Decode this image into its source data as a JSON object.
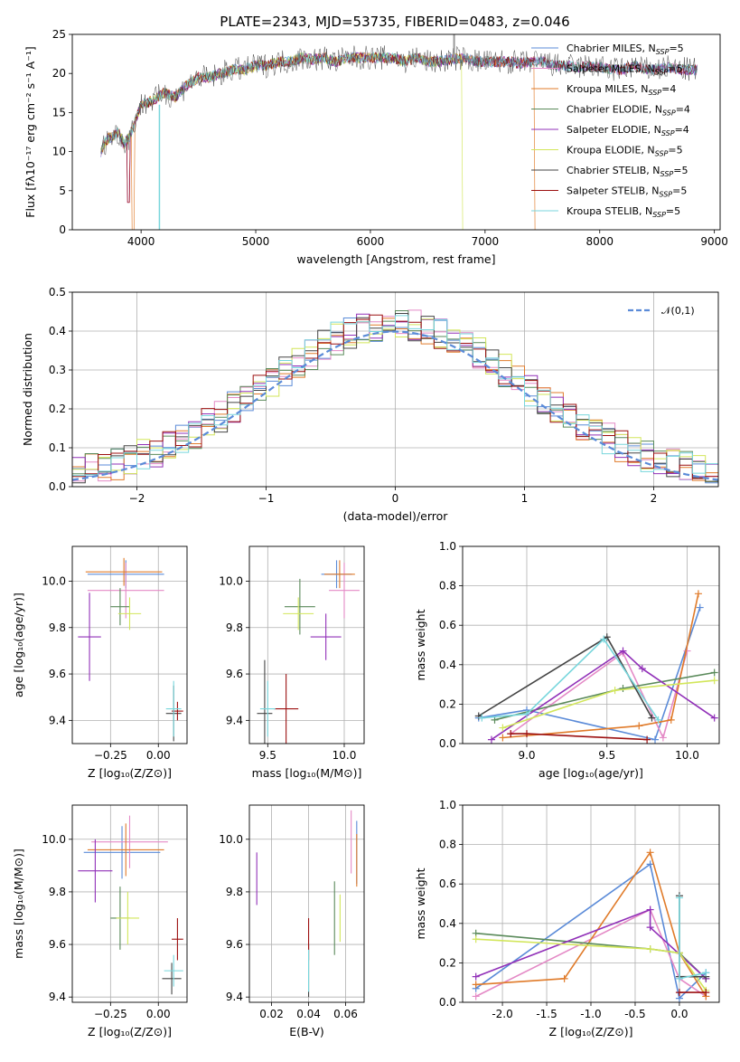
{
  "title": "PLATE=2343, MJD=53735, FIBERID=0483, z=0.046",
  "colors": {
    "Chabrier MILES": "#5b8bd8",
    "Salpeter MILES": "#e48ac6",
    "Kroupa MILES": "#e07b2a",
    "Chabrier ELODIE": "#5a8a5a",
    "Salpeter ELODIE": "#9130b8",
    "Kroupa ELODIE": "#d2e65a",
    "Chabrier STELIB": "#444444",
    "Salpeter STELIB": "#9c1010",
    "Kroupa STELIB": "#78d6dc"
  },
  "legend_entries": [
    {
      "name": "Chabrier MILES",
      "suffix": "5"
    },
    {
      "name": "Salpeter MILES",
      "suffix": "5"
    },
    {
      "name": "Kroupa MILES",
      "suffix": "4"
    },
    {
      "name": "Chabrier ELODIE",
      "suffix": "4"
    },
    {
      "name": "Salpeter ELODIE",
      "suffix": "4"
    },
    {
      "name": "Kroupa ELODIE",
      "suffix": "5"
    },
    {
      "name": "Chabrier STELIB",
      "suffix": "5"
    },
    {
      "name": "Salpeter STELIB",
      "suffix": "5"
    },
    {
      "name": "Kroupa STELIB",
      "suffix": "5"
    }
  ],
  "chart_data": [
    {
      "id": "spectrum",
      "type": "line",
      "xlabel": "wavelength [Angstrom, rest frame]",
      "ylabel": "Flux [fλ10⁻¹⁷ erg cm⁻² s⁻¹ A⁻¹]",
      "xlim": [
        3400,
        9050
      ],
      "ylim": [
        0,
        25
      ],
      "xticks": [
        4000,
        5000,
        6000,
        7000,
        8000,
        9000
      ],
      "yticks": [
        0,
        5,
        10,
        15,
        20,
        25
      ],
      "x": [
        3650,
        3700,
        3750,
        3800,
        3850,
        3900,
        3950,
        4000,
        4100,
        4200,
        4300,
        4400,
        4500,
        4600,
        4700,
        4800,
        4900,
        5000,
        5100,
        5200,
        5300,
        5400,
        5500,
        5600,
        5700,
        5800,
        5900,
        6000,
        6100,
        6200,
        6300,
        6400,
        6500,
        6600,
        6700,
        6800,
        6900,
        7000,
        7100,
        7200,
        7300,
        7400,
        7500,
        7600,
        7700,
        7800,
        7900,
        8000,
        8100,
        8200,
        8300,
        8400,
        8500,
        8600,
        8700,
        8800
      ],
      "flux": [
        10,
        11.5,
        12,
        12.5,
        11,
        12,
        14,
        16,
        16.5,
        17.5,
        17,
        18.5,
        19.5,
        19.5,
        20,
        20.5,
        20.5,
        21,
        21,
        21.5,
        21.5,
        22,
        21.8,
        22,
        21.5,
        22,
        22,
        22,
        22,
        22,
        21.5,
        22,
        21.5,
        21.5,
        21.8,
        22,
        21.6,
        21.5,
        21.5,
        21.5,
        21.3,
        21.5,
        21.5,
        21,
        21,
        20.8,
        21,
        20.8,
        20.5,
        20.5,
        21,
        20.5,
        20.5,
        20.8,
        20.5,
        20.5
      ],
      "legend": "top-right"
    },
    {
      "id": "residual_hist",
      "type": "bar",
      "xlabel": "(data-model)/error",
      "ylabel": "Normed distribution",
      "xlim": [
        -2.5,
        2.5
      ],
      "ylim": [
        0,
        0.5
      ],
      "xticks": [
        -2,
        -1,
        0,
        1,
        2
      ],
      "yticks": [
        0.0,
        0.1,
        0.2,
        0.3,
        0.4,
        0.5
      ],
      "bin_width": 0.1,
      "reference_series": "𝒩(0,1)",
      "legend": "top-right",
      "grid": true
    },
    {
      "id": "age_vs_Z",
      "type": "scatter",
      "xlabel": "Z [log₁₀(Z/Z⊙)]",
      "ylabel": "age  [log₁₀(age/yr)]",
      "xlim": [
        -0.45,
        0.15
      ],
      "ylim": [
        9.3,
        10.15
      ],
      "xticks": [
        -0.25,
        0.0
      ],
      "yticks": [
        9.4,
        9.6,
        9.8,
        10.0
      ],
      "points": [
        {
          "series": "Chabrier MILES",
          "x": -0.17,
          "y": 10.03,
          "xerr": 0.2,
          "yerr": 0.06
        },
        {
          "series": "Salpeter MILES",
          "x": -0.17,
          "y": 9.96,
          "xerr": 0.2,
          "yerr": 0.12
        },
        {
          "series": "Kroupa MILES",
          "x": -0.18,
          "y": 10.04,
          "xerr": 0.2,
          "yerr": 0.06
        },
        {
          "series": "Chabrier ELODIE",
          "x": -0.2,
          "y": 9.89,
          "xerr": 0.05,
          "yerr": 0.08
        },
        {
          "series": "Salpeter ELODIE",
          "x": -0.36,
          "y": 9.76,
          "xerr": 0.06,
          "yerr": 0.19
        },
        {
          "series": "Kroupa ELODIE",
          "x": -0.15,
          "y": 9.86,
          "xerr": 0.06,
          "yerr": 0.07
        },
        {
          "series": "Chabrier STELIB",
          "x": 0.08,
          "y": 9.43,
          "xerr": 0.04,
          "yerr": 0.12
        },
        {
          "series": "Salpeter STELIB",
          "x": 0.1,
          "y": 9.44,
          "xerr": 0.03,
          "yerr": 0.04
        },
        {
          "series": "Kroupa STELIB",
          "x": 0.08,
          "y": 9.45,
          "xerr": 0.04,
          "yerr": 0.12
        }
      ]
    },
    {
      "id": "age_vs_mass",
      "type": "scatter",
      "xlabel": "mass [log₁₀(M/M⊙)]",
      "ylabel": "",
      "xlim": [
        9.38,
        10.13
      ],
      "ylim": [
        9.3,
        10.15
      ],
      "xticks": [
        9.5,
        10.0
      ],
      "yticks": [
        9.4,
        9.6,
        9.8,
        10.0
      ],
      "points": [
        {
          "series": "Chabrier MILES",
          "x": 9.95,
          "y": 10.03,
          "xerr": 0.1,
          "yerr": 0.06
        },
        {
          "series": "Salpeter MILES",
          "x": 10.0,
          "y": 9.96,
          "xerr": 0.1,
          "yerr": 0.12
        },
        {
          "series": "Kroupa MILES",
          "x": 9.97,
          "y": 10.03,
          "xerr": 0.1,
          "yerr": 0.06
        },
        {
          "series": "Chabrier ELODIE",
          "x": 9.71,
          "y": 9.89,
          "xerr": 0.1,
          "yerr": 0.12
        },
        {
          "series": "Salpeter ELODIE",
          "x": 9.88,
          "y": 9.76,
          "xerr": 0.1,
          "yerr": 0.1
        },
        {
          "series": "Kroupa ELODIE",
          "x": 9.7,
          "y": 9.86,
          "xerr": 0.1,
          "yerr": 0.07
        },
        {
          "series": "Chabrier STELIB",
          "x": 9.48,
          "y": 9.43,
          "xerr": 0.05,
          "yerr": 0.23
        },
        {
          "series": "Salpeter STELIB",
          "x": 9.62,
          "y": 9.45,
          "xerr": 0.08,
          "yerr": 0.15
        },
        {
          "series": "Kroupa STELIB",
          "x": 9.5,
          "y": 9.45,
          "xerr": 0.05,
          "yerr": 0.12
        }
      ]
    },
    {
      "id": "massweight_vs_age",
      "type": "line",
      "xlabel": "age  [log₁₀(age/yr)]",
      "ylabel": "mass weight",
      "xlim": [
        8.6,
        10.2
      ],
      "ylim": [
        0,
        1
      ],
      "xticks": [
        9.0,
        9.5,
        10.0
      ],
      "yticks": [
        0.0,
        0.2,
        0.4,
        0.6,
        0.8,
        1.0
      ],
      "series": [
        {
          "name": "Chabrier MILES",
          "x": [
            8.7,
            9.0,
            9.8,
            10.08
          ],
          "y": [
            0.13,
            0.17,
            0.02,
            0.69
          ]
        },
        {
          "name": "Salpeter MILES",
          "x": [
            8.9,
            9.6,
            9.85,
            10.0
          ],
          "y": [
            0.05,
            0.46,
            0.03,
            0.47
          ]
        },
        {
          "name": "Kroupa MILES",
          "x": [
            8.85,
            9.7,
            9.9,
            10.07
          ],
          "y": [
            0.03,
            0.09,
            0.12,
            0.76
          ]
        },
        {
          "name": "Chabrier ELODIE",
          "x": [
            8.8,
            9.6,
            10.17
          ],
          "y": [
            0.12,
            0.28,
            0.36
          ]
        },
        {
          "name": "Salpeter ELODIE",
          "x": [
            8.78,
            9.6,
            9.72,
            10.17
          ],
          "y": [
            0.02,
            0.47,
            0.38,
            0.13
          ]
        },
        {
          "name": "Kroupa ELODIE",
          "x": [
            8.85,
            9.55,
            10.17
          ],
          "y": [
            0.08,
            0.27,
            0.32
          ]
        },
        {
          "name": "Chabrier STELIB",
          "x": [
            8.7,
            9.5,
            9.78
          ],
          "y": [
            0.14,
            0.54,
            0.13
          ]
        },
        {
          "name": "Salpeter STELIB",
          "x": [
            8.9,
            9.0,
            9.75
          ],
          "y": [
            0.05,
            0.05,
            0.02
          ]
        },
        {
          "name": "Kroupa STELIB",
          "x": [
            8.72,
            9.0,
            9.48,
            9.82
          ],
          "y": [
            0.13,
            0.15,
            0.53,
            0.12
          ]
        }
      ]
    },
    {
      "id": "mass_vs_Z",
      "type": "scatter",
      "xlabel": "Z [log₁₀(Z/Z⊙)]",
      "ylabel": "mass [log₁₀(M/M⊙)]",
      "xlim": [
        -0.45,
        0.15
      ],
      "ylim": [
        9.38,
        10.13
      ],
      "xticks": [
        -0.25,
        0.0
      ],
      "yticks": [
        9.4,
        9.6,
        9.8,
        10.0
      ],
      "points": [
        {
          "series": "Chabrier MILES",
          "x": -0.19,
          "y": 9.95,
          "xerr": 0.2,
          "yerr": 0.1
        },
        {
          "series": "Salpeter MILES",
          "x": -0.15,
          "y": 9.99,
          "xerr": 0.2,
          "yerr": 0.1
        },
        {
          "series": "Kroupa MILES",
          "x": -0.17,
          "y": 9.96,
          "xerr": 0.2,
          "yerr": 0.1
        },
        {
          "series": "Chabrier ELODIE",
          "x": -0.2,
          "y": 9.7,
          "xerr": 0.05,
          "yerr": 0.12
        },
        {
          "series": "Salpeter ELODIE",
          "x": -0.33,
          "y": 9.88,
          "xerr": 0.09,
          "yerr": 0.12
        },
        {
          "series": "Kroupa ELODIE",
          "x": -0.16,
          "y": 9.7,
          "xerr": 0.06,
          "yerr": 0.1
        },
        {
          "series": "Chabrier STELIB",
          "x": 0.07,
          "y": 9.47,
          "xerr": 0.05,
          "yerr": 0.06
        },
        {
          "series": "Salpeter STELIB",
          "x": 0.1,
          "y": 9.62,
          "xerr": 0.03,
          "yerr": 0.08
        },
        {
          "series": "Kroupa STELIB",
          "x": 0.08,
          "y": 9.5,
          "xerr": 0.05,
          "yerr": 0.06
        }
      ]
    },
    {
      "id": "mass_vs_ebv",
      "type": "scatter",
      "xlabel": "E(B-V)",
      "ylabel": "",
      "xlim": [
        0.008,
        0.07
      ],
      "ylim": [
        9.38,
        10.13
      ],
      "xticks": [
        0.02,
        0.04,
        0.06
      ],
      "yticks": [
        9.4,
        9.6,
        9.8,
        10.0
      ],
      "points": [
        {
          "series": "Chabrier MILES",
          "x": 0.066,
          "y": 9.95,
          "xerr": 0,
          "yerr": 0.12
        },
        {
          "series": "Salpeter MILES",
          "x": 0.063,
          "y": 9.99,
          "xerr": 0,
          "yerr": 0.12
        },
        {
          "series": "Kroupa MILES",
          "x": 0.066,
          "y": 9.92,
          "xerr": 0,
          "yerr": 0.1
        },
        {
          "series": "Chabrier ELODIE",
          "x": 0.054,
          "y": 9.7,
          "xerr": 0,
          "yerr": 0.14
        },
        {
          "series": "Salpeter ELODIE",
          "x": 0.012,
          "y": 9.85,
          "xerr": 0,
          "yerr": 0.1
        },
        {
          "series": "Kroupa ELODIE",
          "x": 0.057,
          "y": 9.7,
          "xerr": 0,
          "yerr": 0.09
        },
        {
          "series": "Chabrier STELIB",
          "x": 0.04,
          "y": 9.5,
          "xerr": 0,
          "yerr": 0.1
        },
        {
          "series": "Salpeter STELIB",
          "x": 0.04,
          "y": 9.62,
          "xerr": 0,
          "yerr": 0.08
        },
        {
          "series": "Kroupa STELIB",
          "x": 0.04,
          "y": 9.5,
          "xerr": 0,
          "yerr": 0.08
        }
      ]
    },
    {
      "id": "massweight_vs_Z",
      "type": "line",
      "xlabel": "Z [log₁₀(Z/Z⊙)]",
      "ylabel": "mass weight",
      "xlim": [
        -2.45,
        0.45
      ],
      "ylim": [
        0,
        1
      ],
      "xticks": [
        -2.0,
        -1.5,
        -1.0,
        -0.5,
        0.0
      ],
      "yticks": [
        0.0,
        0.2,
        0.4,
        0.6,
        0.8,
        1.0
      ],
      "series": [
        {
          "name": "Chabrier MILES",
          "x": [
            -2.3,
            -0.33,
            0.0,
            0.3
          ],
          "y": [
            0.07,
            0.7,
            0.02,
            0.15
          ]
        },
        {
          "name": "Salpeter MILES",
          "x": [
            -2.3,
            -0.33,
            0.0,
            0.3
          ],
          "y": [
            0.03,
            0.47,
            0.12,
            0.03
          ]
        },
        {
          "name": "Kroupa MILES",
          "x": [
            -2.3,
            -1.3,
            -0.33,
            0.0,
            0.3
          ],
          "y": [
            0.09,
            0.12,
            0.76,
            0.25,
            0.03
          ]
        },
        {
          "name": "Chabrier ELODIE",
          "x": [
            -2.3,
            -0.33,
            0.0,
            0.3
          ],
          "y": [
            0.35,
            0.27,
            0.25,
            0.12
          ]
        },
        {
          "name": "Salpeter ELODIE",
          "x": [
            -2.3,
            -0.33,
            -0.33,
            0.3
          ],
          "y": [
            0.13,
            0.47,
            0.38,
            0.12
          ]
        },
        {
          "name": "Kroupa ELODIE",
          "x": [
            -2.3,
            -0.33,
            0.0,
            0.3
          ],
          "y": [
            0.32,
            0.27,
            0.25,
            0.06
          ]
        },
        {
          "name": "Chabrier STELIB",
          "x": [
            0.0,
            0.0,
            0.3
          ],
          "y": [
            0.54,
            0.13,
            0.13
          ]
        },
        {
          "name": "Salpeter STELIB",
          "x": [
            0.0,
            0.3
          ],
          "y": [
            0.05,
            0.05
          ]
        },
        {
          "name": "Kroupa STELIB",
          "x": [
            0.0,
            0.0,
            0.3
          ],
          "y": [
            0.53,
            0.12,
            0.15
          ]
        }
      ]
    }
  ]
}
